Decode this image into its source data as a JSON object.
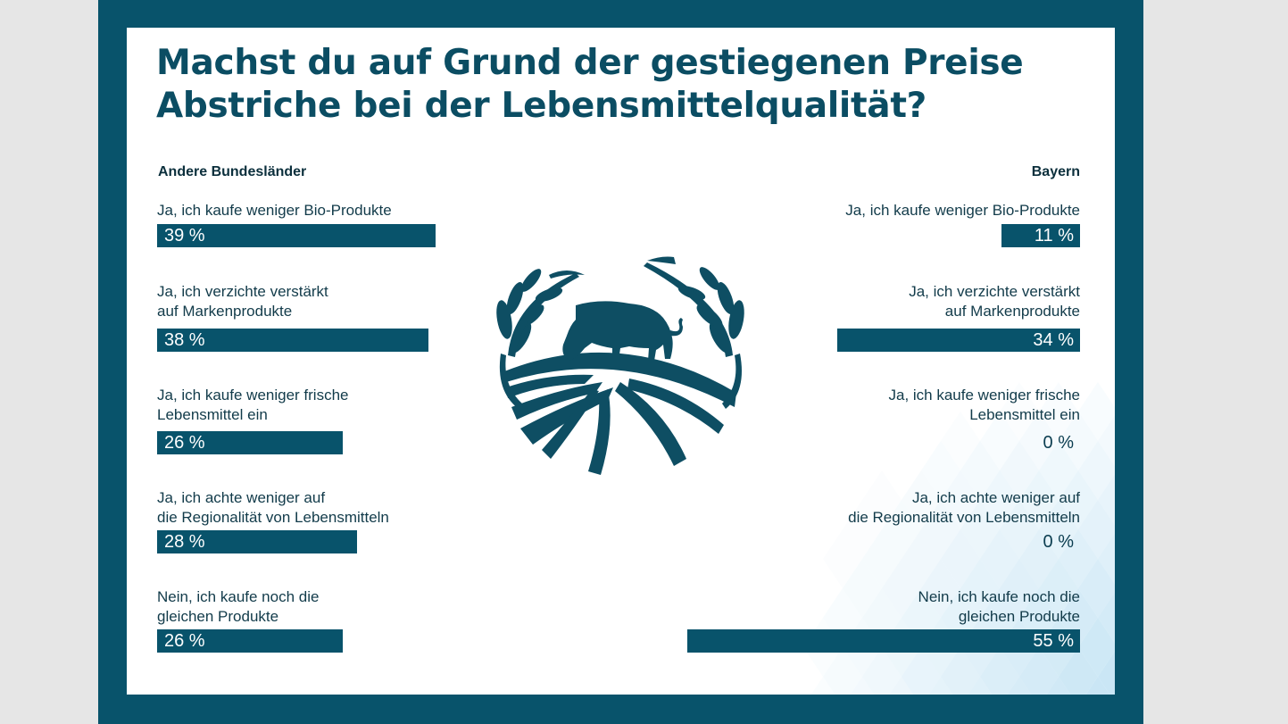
{
  "colors": {
    "frame": "#08536b",
    "bar": "#08536b",
    "title": "#0b4d63",
    "pattern": "#bde0f2"
  },
  "chart_data": {
    "type": "bar",
    "title": "Machst du auf Grund der gestiegenen Preise Abstriche bei der Lebensmittelqualität?",
    "unit": "%",
    "xlim": [
      0,
      100
    ],
    "categories": [
      [
        "Ja, ich kaufe weniger Bio-Produkte"
      ],
      [
        "Ja, ich verzichte verstärkt",
        "auf Markenprodukte"
      ],
      [
        "Ja, ich kaufe weniger frische",
        "Lebensmittel ein"
      ],
      [
        "Ja, ich achte weniger auf",
        "die Regionalität von Lebensmitteln"
      ],
      [
        "Nein, ich kaufe noch die",
        "gleichen Produkte"
      ]
    ],
    "series": [
      {
        "name": "Andere Bundesländer",
        "values": [
          39,
          38,
          26,
          28,
          26
        ],
        "labels": [
          "39 %",
          "38 %",
          "26 %",
          "28 %",
          "26 %"
        ]
      },
      {
        "name": "Bayern",
        "values": [
          11,
          34,
          0,
          0,
          55
        ],
        "labels": [
          "11 %",
          "34 %",
          "0 %",
          "0 %",
          "55 %"
        ]
      }
    ]
  },
  "title_lines": [
    "Machst du auf Grund der gestiegenen Preise",
    "Abstriche bei der Lebensmittelqualität?"
  ],
  "logo": {
    "icon": "cow-wreath-field-icon"
  }
}
